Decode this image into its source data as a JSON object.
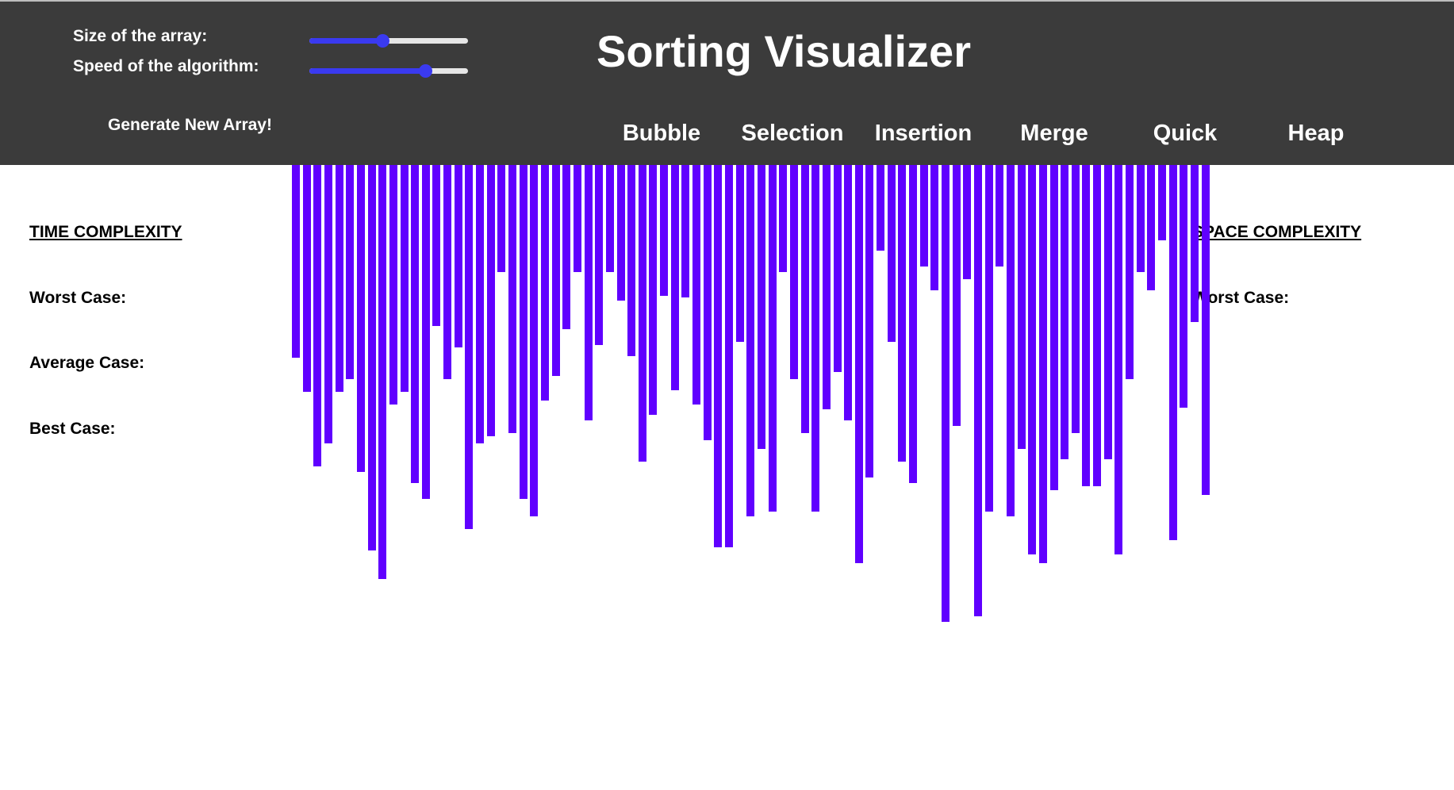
{
  "header": {
    "size_label": "Size of the array:",
    "speed_label": "Speed of the algorithm:",
    "title": "Sorting Visualizer",
    "generate_label": "Generate New Array!",
    "size_slider": {
      "value": 0.46
    },
    "speed_slider": {
      "value": 0.73
    },
    "algorithms": [
      "Bubble",
      "Selection",
      "Insertion",
      "Merge",
      "Quick",
      "Heap"
    ]
  },
  "time_complexity": {
    "heading": "TIME COMPLEXITY",
    "worst": "Worst Case:",
    "average": "Average Case:",
    "best": "Best Case:"
  },
  "space_complexity": {
    "heading": "SPACE COMPLEXITY",
    "worst": "Worst Case:"
  },
  "colors": {
    "header_bg": "#3b3b3b",
    "bar": "#6000ff",
    "slider_accent": "#3a3af0"
  },
  "chart_data": {
    "type": "bar",
    "values": [
      270,
      318,
      422,
      390,
      318,
      300,
      430,
      540,
      580,
      335,
      318,
      445,
      468,
      225,
      300,
      255,
      510,
      390,
      380,
      150,
      375,
      468,
      492,
      330,
      295,
      230,
      150,
      358,
      252,
      150,
      190,
      268,
      415,
      350,
      183,
      316,
      185,
      335,
      385,
      535,
      535,
      248,
      492,
      398,
      485,
      150,
      300,
      375,
      485,
      342,
      290,
      358,
      558,
      438,
      120,
      248,
      415,
      445,
      142,
      175,
      640,
      365,
      160,
      632,
      485,
      142,
      492,
      398,
      545,
      558,
      455,
      412,
      375,
      450,
      450,
      412,
      545,
      300,
      150,
      175,
      105,
      525,
      340,
      220,
      462
    ]
  }
}
